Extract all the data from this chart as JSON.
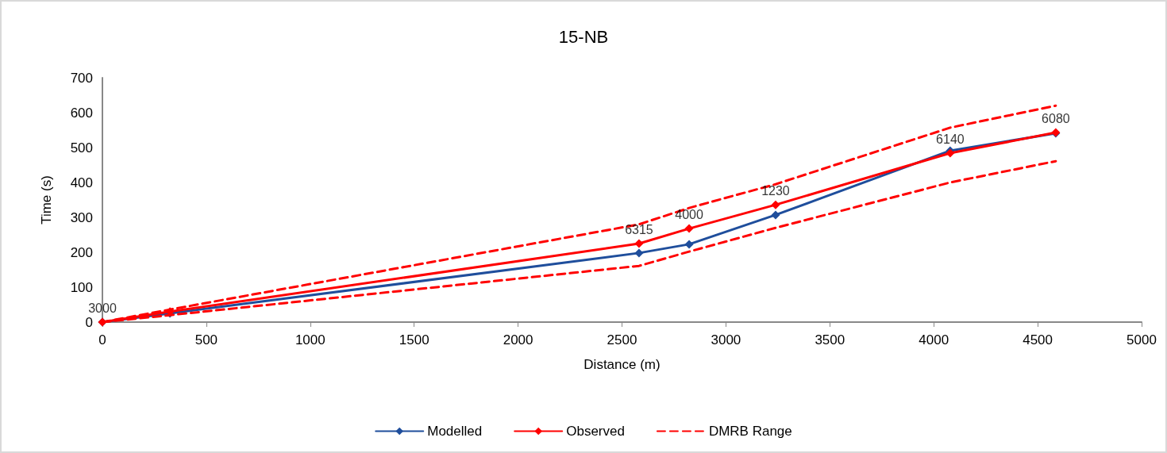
{
  "chart_data": {
    "type": "line",
    "title": "15-NB",
    "xlabel": "Distance (m)",
    "ylabel": "Time (s)",
    "xlim": [
      0,
      5000
    ],
    "xticks": [
      0,
      500,
      1000,
      1500,
      2000,
      2500,
      3000,
      3500,
      4000,
      4500,
      5000
    ],
    "ylim": [
      0,
      700
    ],
    "yticks": [
      0,
      100,
      200,
      300,
      400,
      500,
      600,
      700
    ],
    "grid": false,
    "legend": "bottom",
    "marker": "diamond",
    "line_style": "solid",
    "x": [
      0,
      325,
      2582,
      2823,
      3239,
      4079,
      4587
    ],
    "series": [
      {
        "name": "Modelled",
        "color": "#1f4e9c",
        "values": [
          0,
          25,
          198,
          223,
          307,
          491,
          541
        ]
      },
      {
        "name": "Observed",
        "color": "#ff0000",
        "values": [
          0,
          30,
          225,
          268,
          336,
          484,
          543
        ]
      },
      {
        "name": "DMRB Range",
        "color": "#ff0000",
        "line_style": "dashed",
        "marker": "none",
        "values": [
          0,
          36,
          280,
          327,
          395,
          557,
          620
        ]
      },
      {
        "color": "#ff0000",
        "line_style": "dashed",
        "marker": "none",
        "values": [
          0,
          20,
          161,
          202,
          270,
          400,
          461
        ]
      }
    ],
    "annotations": [
      {
        "text": "3000",
        "x": 0,
        "y": 0
      },
      {
        "text": "6315",
        "x": 2582,
        "y": 225
      },
      {
        "text": "4000",
        "x": 2823,
        "y": 268
      },
      {
        "text": "1230",
        "x": 3239,
        "y": 336
      },
      {
        "text": "6140",
        "x": 4079,
        "y": 484
      },
      {
        "text": "6080",
        "x": 4587,
        "y": 543
      }
    ]
  }
}
